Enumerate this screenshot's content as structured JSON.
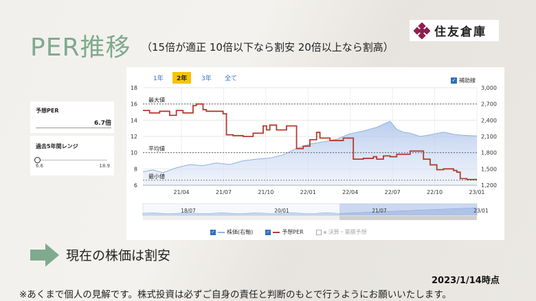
{
  "slide": {
    "title": "PER推移",
    "subtitle": "（15倍が適正 10倍以下なら割安 20倍以上なら割高）",
    "logo_text": "住友倉庫",
    "conclusion": "現在の株価は割安",
    "as_of": "2023/1/14時点",
    "disclaimer": "※あくまで個人の見解です。株式投資は必ずご自身の責任と判断のもとで行うようにお願いいたします。",
    "logo_color": "#8e1f4e",
    "accent_color": "#7faa8d"
  },
  "cards": {
    "forecast_per_label": "予想PER",
    "forecast_per_value": "6.7倍",
    "range_label": "過去5年間レンジ",
    "range_min": "6.6",
    "range_max": "18.9",
    "range_position": 0.0
  },
  "controls": {
    "tabs": [
      {
        "label": "1年",
        "active": false
      },
      {
        "label": "2年",
        "active": true
      },
      {
        "label": "3年",
        "active": false
      },
      {
        "label": "全て",
        "active": false
      }
    ],
    "helper_checkbox_label": "補助線",
    "helper_checked": true
  },
  "legend": [
    {
      "label": "株価(右軸)",
      "color": "#8fb0e0",
      "checked": true
    },
    {
      "label": "予想PER",
      "color": "#b33a2e",
      "checked": true
    },
    {
      "label": "決算・業績予想",
      "color": "#c0c0c0",
      "checked": false
    }
  ],
  "chart_data": {
    "type": "line",
    "x_tick_labels": [
      "21/04",
      "21/07",
      "21/10",
      "22/01",
      "22/04",
      "22/07",
      "22/10",
      "23/01"
    ],
    "y_left": {
      "ticks": [
        6,
        8,
        10,
        12,
        14,
        16,
        18
      ],
      "range": [
        6,
        18
      ]
    },
    "y_right": {
      "ticks": [
        "1,200",
        "1,500",
        "1,800",
        "2,100",
        "2,400",
        "2,700",
        "3,000"
      ],
      "range": [
        1200,
        3000
      ]
    },
    "reference_lines": [
      {
        "label": "最大値",
        "value": 16.0
      },
      {
        "label": "平均値",
        "value": 10.0
      },
      {
        "label": "最小値",
        "value": 6.6
      }
    ],
    "series": [
      {
        "name": "予想PER",
        "axis": "left",
        "color": "#b33a2e",
        "x": [
          0,
          0.02,
          0.05,
          0.08,
          0.1,
          0.12,
          0.15,
          0.16,
          0.18,
          0.19,
          0.24,
          0.25,
          0.27,
          0.3,
          0.33,
          0.36,
          0.37,
          0.38,
          0.4,
          0.43,
          0.46,
          0.48,
          0.5,
          0.52,
          0.53,
          0.56,
          0.6,
          0.63,
          0.66,
          0.69,
          0.7,
          0.72,
          0.74,
          0.76,
          0.8,
          0.84,
          0.86,
          0.88,
          0.9,
          0.93,
          0.94,
          0.95,
          0.97,
          1.0
        ],
        "values": [
          15.2,
          14.9,
          15.1,
          14.6,
          15.2,
          14.9,
          15.8,
          16.0,
          15.3,
          15.1,
          14.8,
          12.2,
          12.1,
          12.0,
          12.4,
          13.3,
          12.8,
          13.4,
          12.8,
          13.3,
          10.5,
          10.8,
          11.6,
          12.5,
          11.8,
          11.5,
          11.8,
          9.2,
          9.3,
          9.5,
          9.2,
          9.6,
          9.5,
          9.8,
          10.2,
          9.2,
          8.5,
          7.9,
          8.0,
          7.8,
          7.6,
          6.8,
          6.7,
          6.7
        ]
      },
      {
        "name": "株価(右軸)",
        "axis": "right",
        "color": "#8fb0e0",
        "x": [
          0,
          0.03,
          0.06,
          0.1,
          0.14,
          0.18,
          0.22,
          0.26,
          0.3,
          0.34,
          0.38,
          0.42,
          0.46,
          0.5,
          0.54,
          0.58,
          0.62,
          0.66,
          0.7,
          0.74,
          0.76,
          0.78,
          0.8,
          0.83,
          0.86,
          0.9,
          0.93,
          0.96,
          1.0
        ],
        "values": [
          1450,
          1480,
          1430,
          1520,
          1580,
          1560,
          1610,
          1580,
          1650,
          1680,
          1700,
          1760,
          1880,
          1960,
          2000,
          2050,
          2150,
          2200,
          2270,
          2380,
          2230,
          2180,
          2160,
          2100,
          2130,
          2180,
          2140,
          2120,
          2110
        ]
      }
    ]
  }
}
